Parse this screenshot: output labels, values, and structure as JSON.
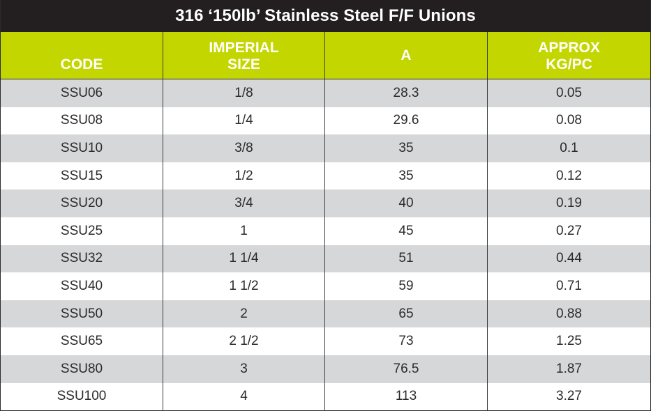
{
  "title": "316 ‘150lb’ Stainless Steel  F/F Unions",
  "headers": {
    "code": "CODE",
    "imperial_line1": "IMPERIAL",
    "imperial_line2": "SIZE",
    "a": "A",
    "approx_line1": "APPROX",
    "approx_line2": "KG/PC"
  },
  "colors": {
    "title_bg": "#231f20",
    "header_bg": "#c4d600",
    "shaded_row": "#d6d7d8"
  },
  "rows": [
    {
      "code": "SSU06",
      "imperial": "1/8",
      "a": "28.3",
      "kg": "0.05"
    },
    {
      "code": "SSU08",
      "imperial": "1/4",
      "a": "29.6",
      "kg": "0.08"
    },
    {
      "code": "SSU10",
      "imperial": "3/8",
      "a": "35",
      "kg": "0.1"
    },
    {
      "code": "SSU15",
      "imperial": "1/2",
      "a": "35",
      "kg": "0.12"
    },
    {
      "code": "SSU20",
      "imperial": "3/4",
      "a": "40",
      "kg": "0.19"
    },
    {
      "code": "SSU25",
      "imperial": "1",
      "a": "45",
      "kg": "0.27"
    },
    {
      "code": "SSU32",
      "imperial": "1 1/4",
      "a": "51",
      "kg": "0.44"
    },
    {
      "code": "SSU40",
      "imperial": "1 1/2",
      "a": "59",
      "kg": "0.71"
    },
    {
      "code": "SSU50",
      "imperial": "2",
      "a": "65",
      "kg": "0.88"
    },
    {
      "code": "SSU65",
      "imperial": "2 1/2",
      "a": "73",
      "kg": "1.25"
    },
    {
      "code": "SSU80",
      "imperial": "3",
      "a": "76.5",
      "kg": "1.87"
    },
    {
      "code": "SSU100",
      "imperial": "4",
      "a": "113",
      "kg": "3.27"
    }
  ]
}
